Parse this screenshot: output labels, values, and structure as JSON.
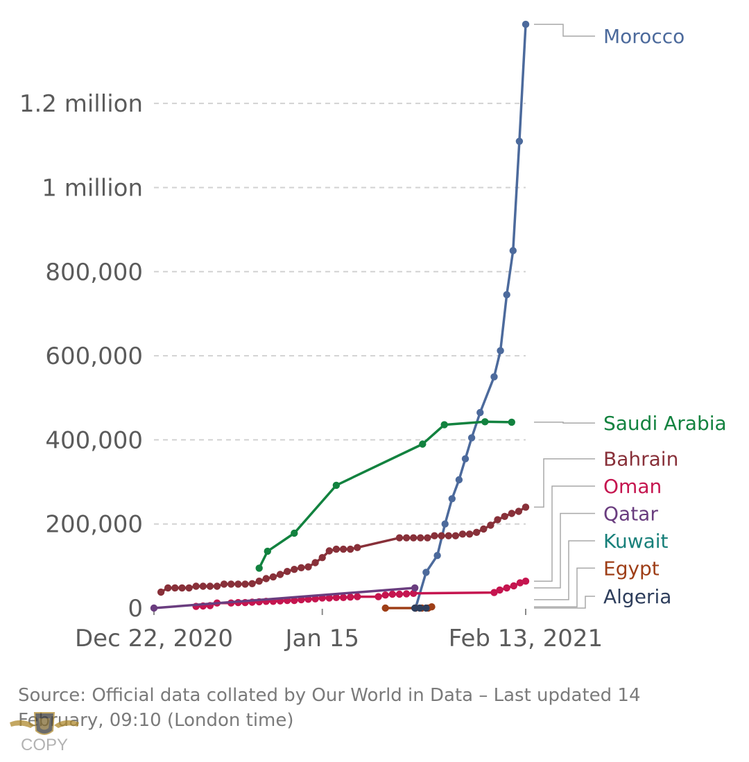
{
  "chart_data": {
    "type": "line",
    "title": "",
    "xlabel": "",
    "ylabel": "",
    "x_ticks": [
      {
        "day": 0,
        "label": "Dec 22, 2020"
      },
      {
        "day": 24,
        "label": "Jan 15"
      },
      {
        "day": 53,
        "label": "Feb 13, 2021"
      }
    ],
    "xlim": [
      0,
      53
    ],
    "ylim": [
      0,
      1380000
    ],
    "y_ticks": [
      {
        "value": 0,
        "label": "0"
      },
      {
        "value": 200000,
        "label": "200,000"
      },
      {
        "value": 400000,
        "label": "400,000"
      },
      {
        "value": 600000,
        "label": "600,000"
      },
      {
        "value": 800000,
        "label": "800,000"
      },
      {
        "value": 1000000,
        "label": "1 million"
      },
      {
        "value": 1200000,
        "label": "1.2 million"
      }
    ],
    "series": [
      {
        "name": "Morocco",
        "color": "#4c6a9c",
        "label_value": 1360000,
        "points": [
          [
            37.3,
            0
          ],
          [
            38.8,
            85000
          ],
          [
            40.4,
            125000
          ],
          [
            41.5,
            200000
          ],
          [
            42.5,
            260000
          ],
          [
            43.5,
            305000
          ],
          [
            44.4,
            355000
          ],
          [
            45.3,
            405000
          ],
          [
            46.5,
            465000
          ],
          [
            48.5,
            550000
          ],
          [
            49.4,
            612000
          ],
          [
            50.3,
            745000
          ],
          [
            51.2,
            850000
          ],
          [
            52.1,
            1110000
          ],
          [
            53,
            1388000
          ]
        ]
      },
      {
        "name": "Saudi Arabia",
        "color": "#12823f",
        "label_value": 440000,
        "points": [
          [
            15,
            95000
          ],
          [
            16.2,
            135000
          ],
          [
            20,
            178000
          ],
          [
            26,
            292000
          ],
          [
            38.3,
            390000
          ],
          [
            41.4,
            436000
          ],
          [
            47.2,
            443000
          ],
          [
            51,
            442000
          ]
        ]
      },
      {
        "name": "Bahrain",
        "color": "#883039",
        "label_value": 355000,
        "points": [
          [
            1,
            38000
          ],
          [
            2,
            48000
          ],
          [
            3,
            48000
          ],
          [
            4,
            48000
          ],
          [
            5,
            48000
          ],
          [
            6,
            52000
          ],
          [
            7,
            52000
          ],
          [
            8,
            52000
          ],
          [
            9,
            52000
          ],
          [
            10,
            57000
          ],
          [
            11,
            57000
          ],
          [
            12,
            57000
          ],
          [
            13,
            57000
          ],
          [
            14,
            58000
          ],
          [
            15,
            64000
          ],
          [
            16,
            70000
          ],
          [
            17,
            74000
          ],
          [
            18,
            80000
          ],
          [
            19,
            87000
          ],
          [
            20,
            92000
          ],
          [
            21,
            96000
          ],
          [
            22,
            98000
          ],
          [
            23,
            108000
          ],
          [
            24,
            120000
          ],
          [
            25,
            136000
          ],
          [
            26,
            140000
          ],
          [
            27,
            140000
          ],
          [
            28,
            140000
          ],
          [
            29,
            144000
          ],
          [
            35,
            167000
          ],
          [
            36,
            167000
          ],
          [
            37,
            167000
          ],
          [
            38,
            167000
          ],
          [
            39,
            167000
          ],
          [
            40,
            172000
          ],
          [
            41,
            172000
          ],
          [
            42,
            172000
          ],
          [
            43,
            172000
          ],
          [
            44,
            176000
          ],
          [
            45,
            176000
          ],
          [
            46,
            180000
          ],
          [
            47,
            188000
          ],
          [
            48,
            197000
          ],
          [
            49,
            210000
          ],
          [
            50,
            218000
          ],
          [
            51,
            225000
          ],
          [
            52,
            230000
          ],
          [
            53,
            240000
          ]
        ]
      },
      {
        "name": "Oman",
        "color": "#c5154f",
        "label_value": 290000,
        "points": [
          [
            6,
            4000
          ],
          [
            7,
            5000
          ],
          [
            8,
            6000
          ],
          [
            9,
            12000
          ],
          [
            11,
            12000
          ],
          [
            12,
            13000
          ],
          [
            13,
            13000
          ],
          [
            14,
            14000
          ],
          [
            15,
            15000
          ],
          [
            16,
            16000
          ],
          [
            17,
            16000
          ],
          [
            18,
            17000
          ],
          [
            19,
            18000
          ],
          [
            20,
            18000
          ],
          [
            21,
            20000
          ],
          [
            22,
            21000
          ],
          [
            23,
            22000
          ],
          [
            24,
            24000
          ],
          [
            25,
            24000
          ],
          [
            26,
            25000
          ],
          [
            27,
            25000
          ],
          [
            28,
            26000
          ],
          [
            29,
            27000
          ],
          [
            32,
            27000
          ],
          [
            33,
            31000
          ],
          [
            34,
            33000
          ],
          [
            35,
            33000
          ],
          [
            36,
            34000
          ],
          [
            37,
            35000
          ],
          [
            48.5,
            37000
          ],
          [
            49.3,
            43000
          ],
          [
            50.3,
            48000
          ],
          [
            51.3,
            53000
          ],
          [
            52.2,
            60000
          ],
          [
            53,
            64000
          ]
        ]
      },
      {
        "name": "Qatar",
        "color": "#6a3d7f",
        "label_value": 225000,
        "points": [
          [
            0,
            0
          ],
          [
            37.2,
            48000
          ]
        ]
      },
      {
        "name": "Kuwait",
        "color": "#18807a",
        "label_value": 160000,
        "points": []
      },
      {
        "name": "Egypt",
        "color": "#9e3e17",
        "label_value": 95000,
        "points": [
          [
            33,
            0
          ],
          [
            37.3,
            0
          ],
          [
            38.2,
            0
          ],
          [
            39.1,
            0
          ],
          [
            39.6,
            3000
          ]
        ]
      },
      {
        "name": "Algeria",
        "color": "#2e3e5c",
        "label_value": 28000,
        "points": [
          [
            37.2,
            0
          ],
          [
            37.9,
            0
          ],
          [
            38.8,
            0
          ]
        ]
      }
    ]
  },
  "source_text": "Source: Official data collated by Our World in Data – Last updated 14 February, 09:10 (London time)",
  "watermark_text": "COPY"
}
